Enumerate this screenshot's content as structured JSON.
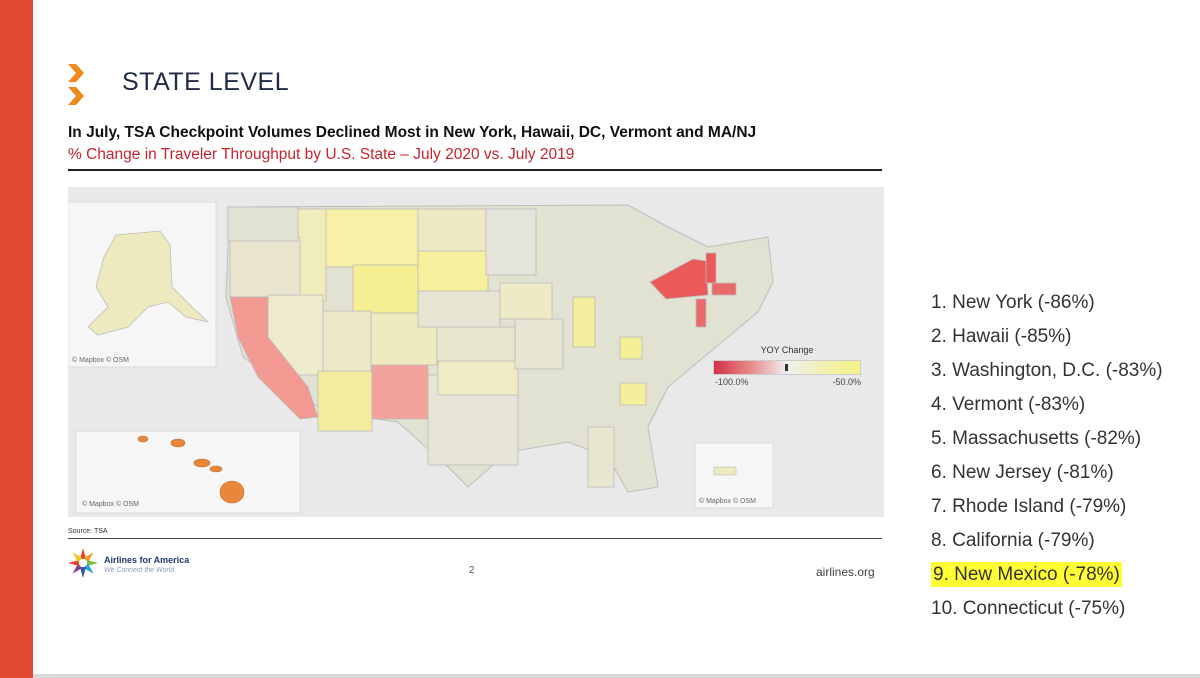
{
  "slide": {
    "heading": "STATE LEVEL",
    "title": "In July, TSA Checkpoint Volumes Declined Most in New York, Hawaii, DC, Vermont and MA/NJ",
    "subtitle": "% Change in Traveler Throughput by U.S. State – July 2020 vs. July 2019",
    "source": "Source: TSA",
    "page_number": "2",
    "website": "airlines.org",
    "logo": {
      "name": "Airlines for America",
      "tagline": "We Connect the World"
    },
    "accent_color": "#e24a33"
  },
  "map": {
    "credits": [
      "© Mapbox © OSM",
      "© Mapbox © OSM",
      "© Mapbox © OSM"
    ],
    "legend": {
      "title": "YOY Change",
      "min_label": "-100.0%",
      "max_label": "-50.0%",
      "color_low": "#d4304a",
      "color_high": "#f5f28a"
    },
    "highlighted_states": [
      {
        "state": "New York",
        "color": "#ea5a5a"
      },
      {
        "state": "Vermont",
        "color": "#ea5a5a"
      },
      {
        "state": "Massachusetts",
        "color": "#ea6a6a"
      },
      {
        "state": "New Jersey",
        "color": "#ea6a6a"
      },
      {
        "state": "California",
        "color": "#f29a92"
      },
      {
        "state": "New Mexico",
        "color": "#f2a49c"
      },
      {
        "state": "Hawaii",
        "color": "#e8863a"
      }
    ]
  },
  "ranking": [
    {
      "text": "1. New York (-86%)",
      "highlight": false
    },
    {
      "text": "2. Hawaii (-85%)",
      "highlight": false
    },
    {
      "text": "3. Washington, D.C. (-83%)",
      "highlight": false
    },
    {
      "text": "4. Vermont (-83%)",
      "highlight": false
    },
    {
      "text": "5. Massachusetts (-82%)",
      "highlight": false
    },
    {
      "text": "6. New Jersey (-81%)",
      "highlight": false
    },
    {
      "text": "7. Rhode Island (-79%)",
      "highlight": false
    },
    {
      "text": "8. California (-79%)",
      "highlight": false
    },
    {
      "text": "9. New Mexico (-78%)",
      "highlight": true
    },
    {
      "text": "10. Connecticut (-75%)",
      "highlight": false
    }
  ]
}
